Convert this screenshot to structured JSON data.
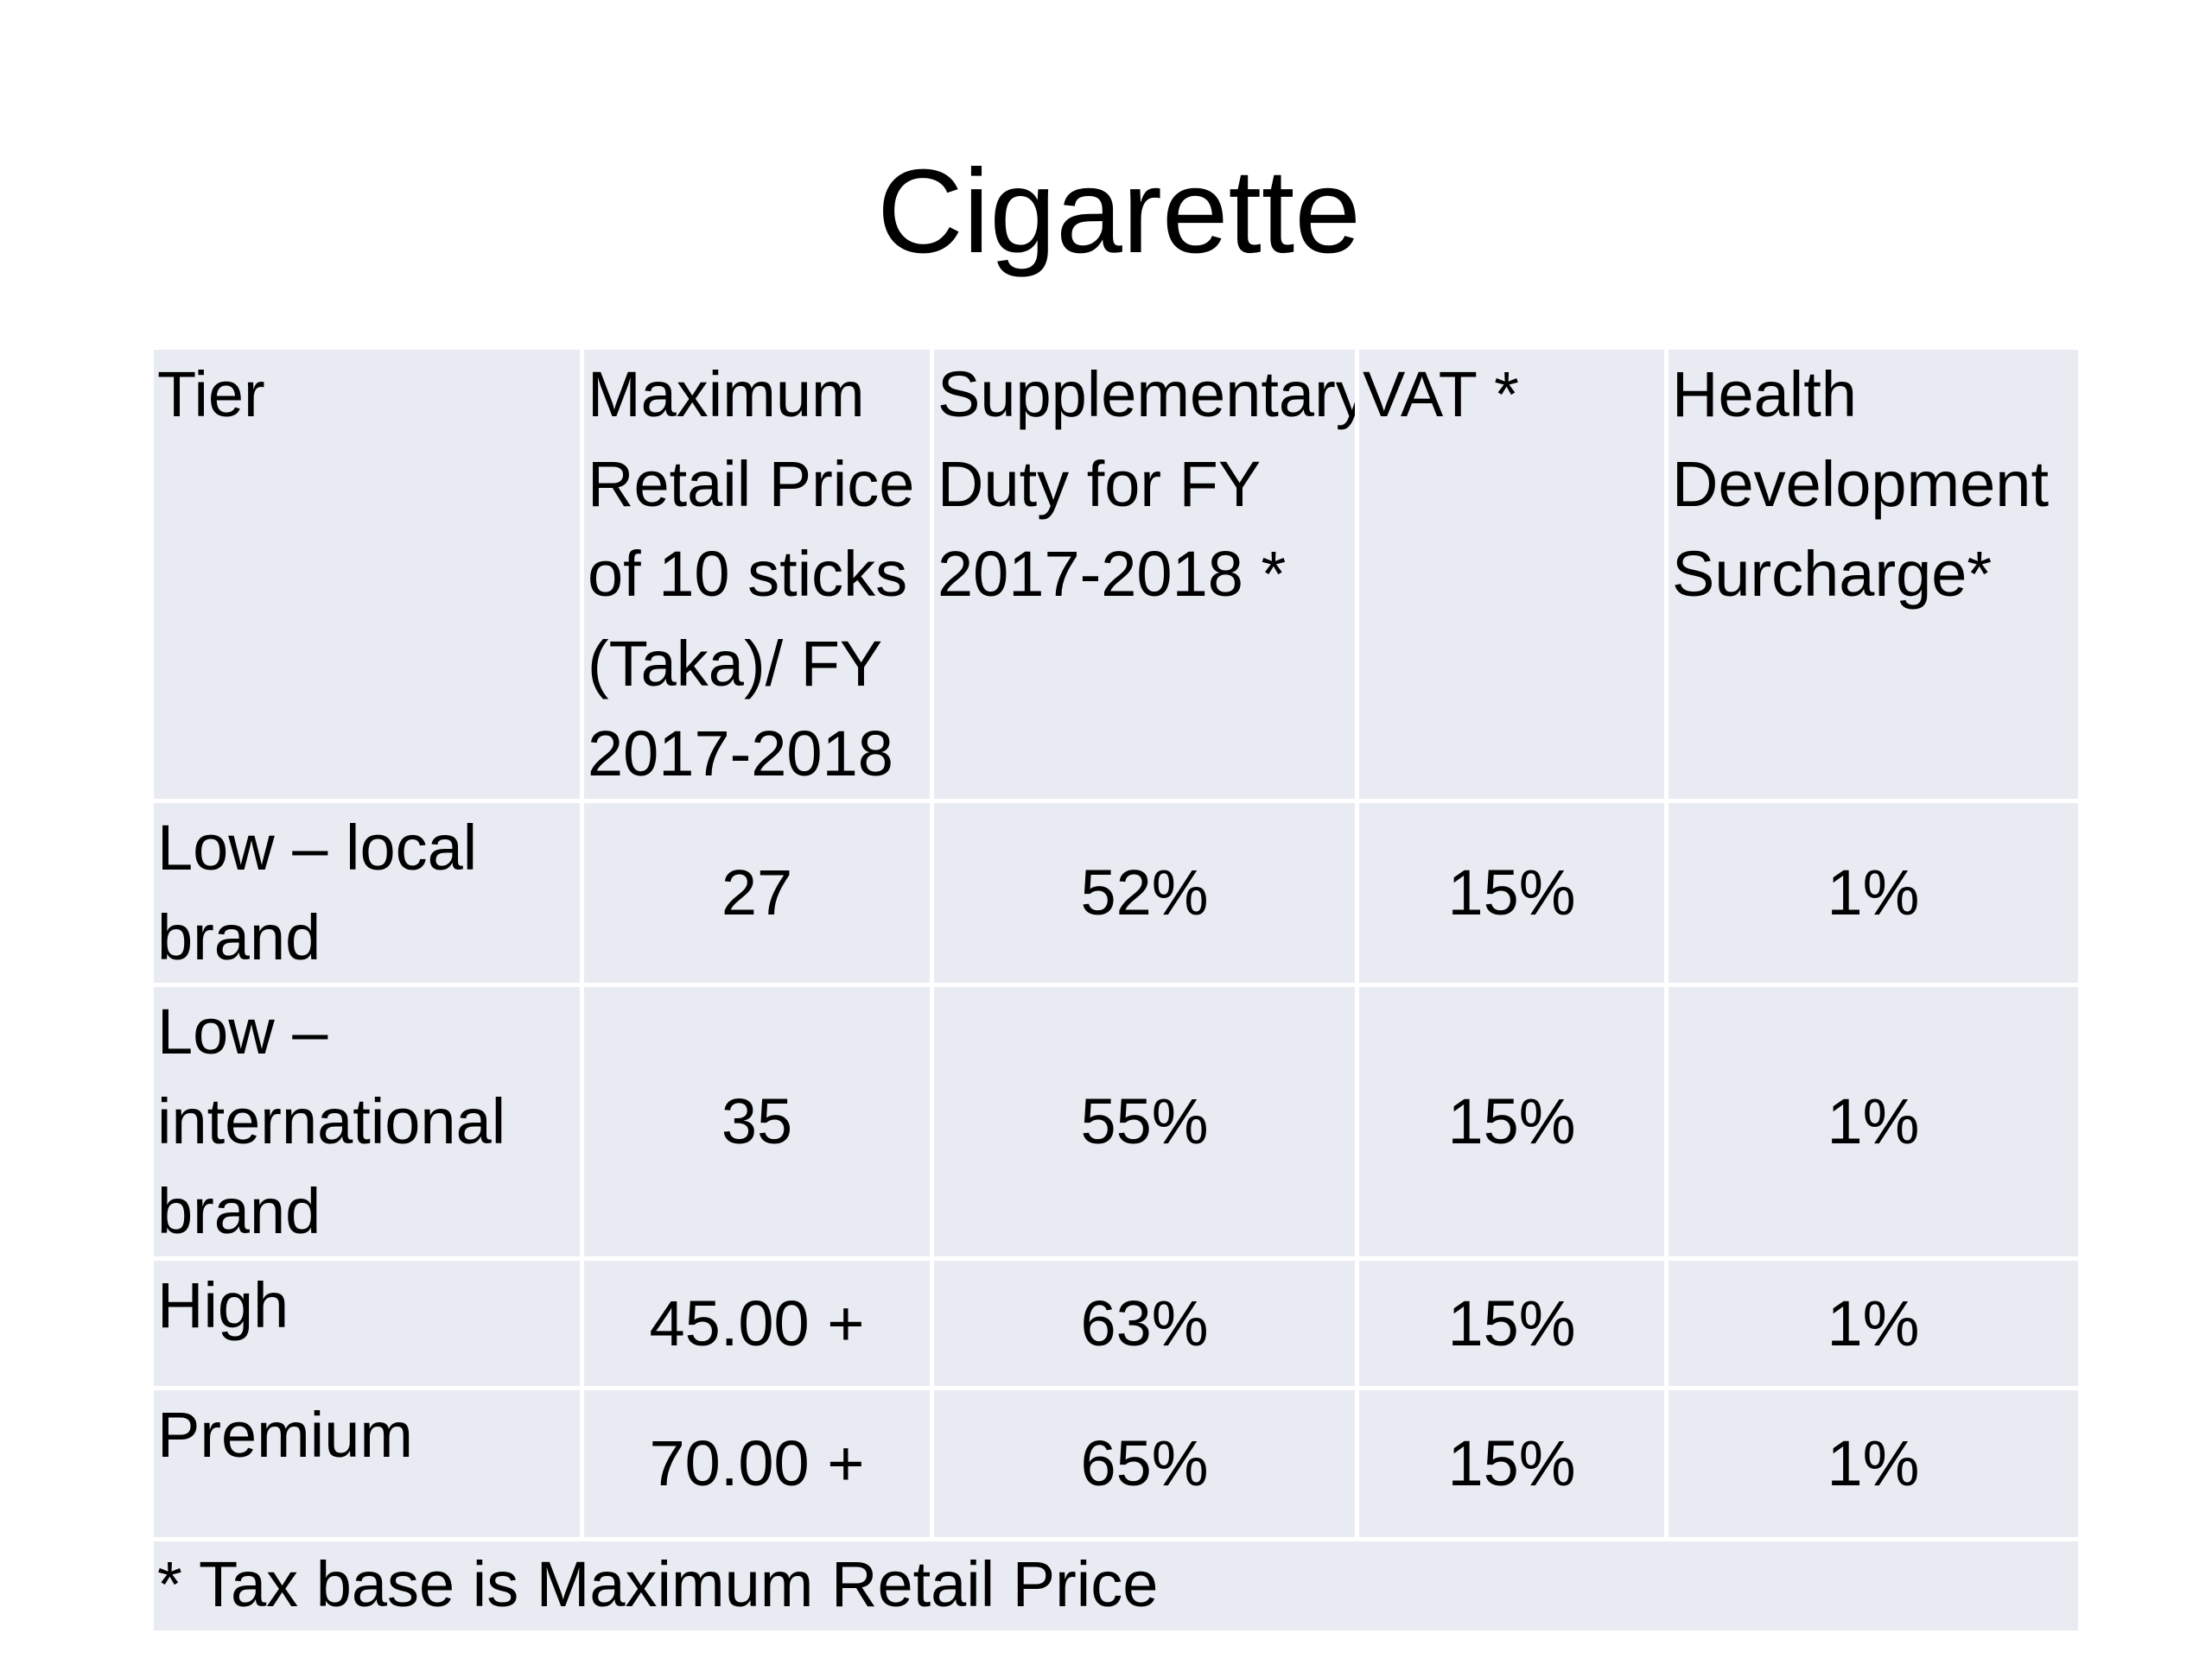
{
  "title": "Cigarette",
  "table": {
    "headers": [
      "Tier",
      "Maximum Retail Price of 10 sticks (Taka)/ FY 2017-2018",
      "Supplementary Duty for FY 2017-2018 *",
      "VAT *",
      "Health Development Surcharge*"
    ],
    "rows": [
      {
        "tier": "Low – local brand",
        "mrp": "27",
        "sd": "52%",
        "vat": "15%",
        "hds": "1%"
      },
      {
        "tier": "Low – international brand",
        "mrp": "35",
        "sd": "55%",
        "vat": "15%",
        "hds": "1%"
      },
      {
        "tier": "High",
        "mrp": "45.00 +",
        "sd": "63%",
        "vat": "15%",
        "hds": "1%"
      },
      {
        "tier": "Premium",
        "mrp": "70.00 +",
        "sd": "65%",
        "vat": "15%",
        "hds": "1%"
      }
    ],
    "footnote": "* Tax base is Maximum Retail Price"
  },
  "colors": {
    "cell_background": "#e9ebf3",
    "cell_border": "#ffffff",
    "text": "#000000"
  }
}
